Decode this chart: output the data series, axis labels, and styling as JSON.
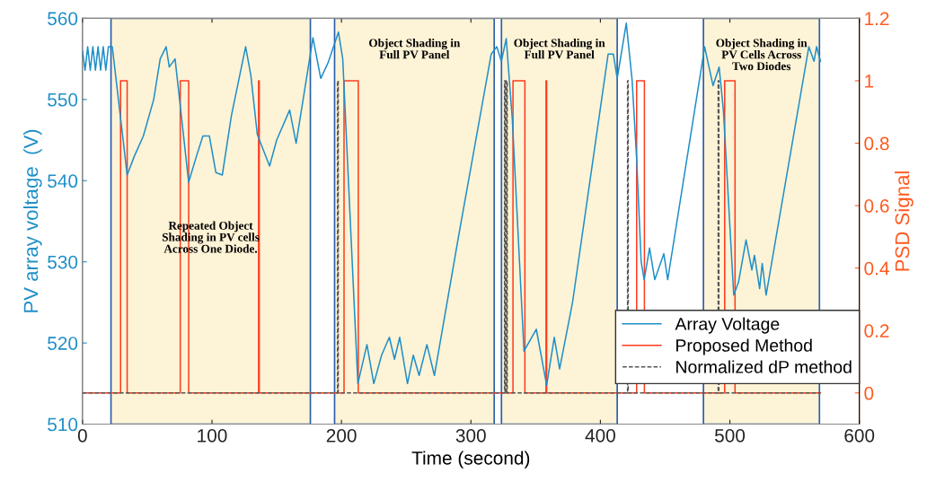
{
  "chart_data": {
    "type": "line",
    "xlabel": "Time (second)",
    "ylabel": "PV array voltage  (V)",
    "y2label": "PSD Signal",
    "xlim": [
      0,
      600
    ],
    "xticks": [
      0,
      100,
      200,
      300,
      400,
      500,
      600
    ],
    "ylim": [
      510,
      560
    ],
    "yticks": [
      510,
      520,
      530,
      540,
      550,
      560
    ],
    "y2lim": [
      -0.1,
      1.2
    ],
    "y2ticks": [
      0,
      0.2,
      0.4,
      0.6,
      0.8,
      1,
      1.2
    ],
    "grid": false,
    "legend": "bottom right",
    "bands": [
      {
        "axis": "x",
        "from": 22,
        "to": 176,
        "color": "#fdf3d6",
        "label": "Repeated Object\nShading in PV cells\nAcross One Diode."
      },
      {
        "axis": "x",
        "from": 194.7,
        "to": 318,
        "color": "#fdf3d6",
        "label": "Object Shading in\nFull PV Panel"
      },
      {
        "axis": "x",
        "from": 323.6,
        "to": 413,
        "color": "#fdf3d6",
        "label": "Object Shading in\nFull PV Panel"
      },
      {
        "axis": "x",
        "from": 479.6,
        "to": 569.2,
        "color": "#fdf3d6",
        "label": "Object Shading in\nPV Cells Across\nTwo Diodes"
      }
    ],
    "series": [
      {
        "name": "Array Voltage",
        "color": "#1f8fc8",
        "line_style": "solid",
        "x": [
          0,
          2,
          4,
          6,
          8,
          10,
          12,
          14,
          16,
          18,
          20,
          23,
          34.5,
          40,
          47,
          55,
          60,
          64.6,
          67,
          71.5,
          82,
          88,
          93,
          98,
          103,
          108,
          115,
          126,
          130,
          135,
          144.5,
          150,
          160,
          165,
          178,
          184,
          189.6,
          197.7,
          201,
          212.7,
          219.7,
          225,
          231,
          237,
          241,
          245,
          251,
          255.5,
          260,
          266,
          271.8,
          291.4,
          315.7,
          320,
          323.5,
          327.3,
          332,
          341,
          350.5,
          358.5,
          364.4,
          368.5,
          378.5,
          406,
          410,
          413,
          420,
          424.5,
          428,
          431.5,
          433.8,
          438,
          442,
          449,
          452,
          477.8,
          480.5,
          487,
          491.7,
          495,
          503,
          506.7,
          512.5,
          517,
          519,
          523,
          525,
          528,
          561,
          565,
          567,
          570
        ],
        "values": [
          556,
          553.6,
          556.5,
          553.6,
          556.5,
          553.6,
          556.5,
          553.6,
          556.5,
          553.6,
          556.5,
          556.5,
          540.7,
          543,
          545.5,
          550,
          555,
          556.5,
          554,
          555,
          539.8,
          543,
          545.5,
          545.5,
          541,
          540.7,
          548,
          556.5,
          553,
          545.7,
          541.8,
          545,
          548.7,
          544.6,
          557.6,
          552.6,
          554.5,
          558.3,
          555,
          515,
          519.8,
          515,
          518.5,
          520.7,
          518,
          520.7,
          515,
          518.5,
          516,
          519.8,
          516,
          534,
          555.6,
          556.5,
          554.7,
          557.5,
          547.5,
          519,
          521.7,
          514.8,
          520.7,
          516.8,
          525,
          555.6,
          555.6,
          552.6,
          559.4,
          552.4,
          542.7,
          530,
          527.8,
          531.7,
          527.8,
          531,
          527.8,
          553.7,
          556.5,
          551.7,
          554,
          548.7,
          525.9,
          527.5,
          532.7,
          529,
          530.8,
          526.7,
          529.8,
          525.9,
          556.5,
          554.7,
          556.5,
          554.7
        ]
      },
      {
        "name": "Proposed Method",
        "color": "#ff3b1f",
        "axis": "y2",
        "line_style": "solid",
        "x": [
          0,
          29.4,
          29.4,
          34.5,
          34.5,
          75.5,
          75.5,
          82,
          82,
          136,
          136,
          136.5,
          136.5,
          202,
          202,
          213,
          213,
          332.5,
          332.5,
          341.7,
          341.7,
          358,
          358,
          358.5,
          358.5,
          428,
          428,
          434,
          434,
          496,
          496,
          504,
          504,
          570
        ],
        "values": [
          0,
          0,
          1,
          1,
          0,
          0,
          1,
          1,
          0,
          0,
          1,
          1,
          0,
          0,
          1,
          1,
          0,
          0,
          1,
          1,
          0,
          0,
          1,
          1,
          0,
          0,
          1,
          1,
          0,
          0,
          1,
          1,
          0,
          0
        ]
      },
      {
        "name": "Normalized dP method",
        "color": "#555555",
        "axis": "y2",
        "line_style": "dashed",
        "x": [
          0,
          197,
          197,
          197.5,
          197.5,
          326,
          326,
          326.5,
          326.5,
          327.5,
          327.5,
          328,
          328,
          421,
          421,
          421.5,
          421.5,
          491,
          491,
          491.5,
          491.5,
          570
        ],
        "values": [
          0,
          0,
          1,
          1,
          0,
          0,
          1,
          1,
          0,
          0,
          1,
          1,
          0,
          0,
          1,
          1,
          0,
          0,
          1,
          1,
          0,
          0
        ]
      }
    ]
  }
}
